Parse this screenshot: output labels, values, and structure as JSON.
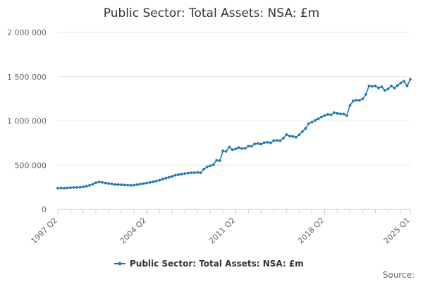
{
  "chart_data": {
    "type": "line",
    "title": "Public Sector: Total Assets: NSA: £m",
    "xlabel": "",
    "ylabel": "",
    "ylim": [
      0,
      2000000
    ],
    "yticks": [
      0,
      500000,
      1000000,
      1500000,
      2000000
    ],
    "ytick_labels": [
      "0",
      "500 000",
      "1 000 000",
      "1 500 000",
      "2 000 000"
    ],
    "xticks": [
      "1997 Q2",
      "2004 Q2",
      "2011 Q2",
      "2018 Q2",
      "2025 Q1"
    ],
    "x_start": "1997 Q2",
    "x_end": "2025 Q1",
    "grid": "horizontal",
    "legend_position": "bottom-center",
    "series": [
      {
        "name": "Public Sector: Total Assets: NSA: £m",
        "color": "#1f78b4",
        "values": [
          240000,
          242000,
          240000,
          243000,
          245000,
          247000,
          248000,
          250000,
          255000,
          262000,
          272000,
          285000,
          302000,
          310000,
          305000,
          298000,
          293000,
          288000,
          281000,
          280000,
          279000,
          276000,
          274000,
          272000,
          275000,
          280000,
          287000,
          292000,
          298000,
          305000,
          312000,
          320000,
          330000,
          342000,
          353000,
          362000,
          373000,
          385000,
          393000,
          398000,
          405000,
          410000,
          413000,
          415000,
          418000,
          413000,
          455000,
          480000,
          492000,
          505000,
          555000,
          550000,
          660000,
          655000,
          705000,
          675000,
          683000,
          698000,
          688000,
          690000,
          715000,
          713000,
          740000,
          745000,
          737000,
          755000,
          758000,
          752000,
          778000,
          780000,
          776000,
          805000,
          845000,
          830000,
          825000,
          815000,
          843000,
          878000,
          915000,
          970000,
          985000,
          1005000,
          1025000,
          1045000,
          1060000,
          1075000,
          1068000,
          1092000,
          1085000,
          1080000,
          1078000,
          1060000,
          1175000,
          1225000,
          1235000,
          1232000,
          1248000,
          1300000,
          1395000,
          1390000,
          1395000,
          1372000,
          1385000,
          1345000,
          1360000,
          1395000,
          1372000,
          1400000,
          1430000,
          1448000,
          1395000,
          1470000
        ]
      }
    ],
    "source_label": "Source:"
  },
  "colors": {
    "series": "#1f78b4",
    "grid": "#e6e6e6",
    "axis": "#cccccc",
    "text": "#333333",
    "muted_text": "#666666"
  }
}
